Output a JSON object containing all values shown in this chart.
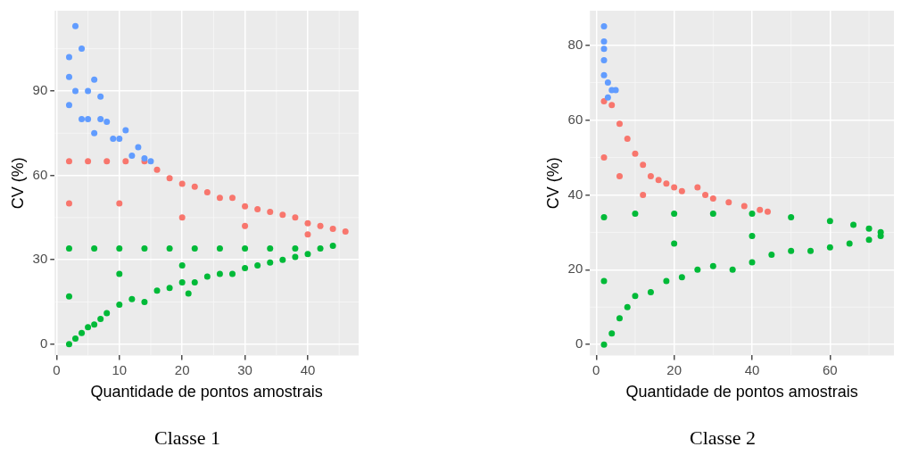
{
  "chart_data": [
    {
      "type": "scatter",
      "title": "Classe 1",
      "xlabel": "Quantidade de pontos amostrais",
      "ylabel": "CV (%)",
      "xlim": [
        -0.3,
        48.1
      ],
      "xticks": [
        0,
        10,
        20,
        30,
        40
      ],
      "ylim": [
        -4,
        118.5
      ],
      "yticks": [
        0,
        30,
        60,
        90
      ],
      "grid": true,
      "marker": "circle",
      "series": [
        {
          "color": "#619cff",
          "x": [
            2,
            3,
            4,
            5,
            6,
            7,
            8,
            9,
            10,
            11,
            12,
            13,
            14,
            15,
            2,
            2,
            3,
            4,
            5,
            6,
            7
          ],
          "values": [
            102,
            113,
            105,
            90,
            94,
            88,
            79,
            73,
            73,
            76,
            67,
            70,
            66,
            65,
            85,
            95,
            90,
            80,
            80,
            75,
            80
          ]
        },
        {
          "color": "#f8766d",
          "x": [
            2,
            5,
            8,
            11,
            14,
            16,
            18,
            20,
            22,
            24,
            26,
            28,
            30,
            32,
            34,
            36,
            38,
            40,
            42,
            44,
            46,
            2,
            10,
            20,
            30,
            40
          ],
          "values": [
            65,
            65,
            65,
            65,
            65,
            62,
            59,
            57,
            56,
            54,
            52,
            52,
            49,
            48,
            47,
            46,
            45,
            43,
            42,
            41,
            40,
            50,
            50,
            45,
            42,
            39
          ]
        },
        {
          "color": "#00ba38",
          "x": [
            2,
            6,
            10,
            14,
            18,
            22,
            26,
            30,
            34,
            38,
            42,
            2,
            3,
            4,
            5,
            6,
            7,
            8,
            10,
            12,
            14,
            16,
            18,
            20,
            21,
            22,
            24,
            26,
            28,
            30,
            32,
            34,
            36,
            38,
            40,
            44,
            2,
            10,
            20
          ],
          "values": [
            34,
            34,
            34,
            34,
            34,
            34,
            34,
            34,
            34,
            34,
            34,
            0,
            2,
            4,
            6,
            7,
            9,
            11,
            14,
            16,
            15,
            19,
            20,
            22,
            18,
            22,
            24,
            25,
            25,
            27,
            28,
            29,
            30,
            31,
            32,
            35,
            17,
            25,
            28
          ]
        }
      ]
    },
    {
      "type": "scatter",
      "title": "Classe 2",
      "xlabel": "Quantidade de pontos amostrais",
      "ylabel": "CV (%)",
      "xlim": [
        -1.6,
        76.4
      ],
      "xticks": [
        0,
        20,
        40,
        60
      ],
      "ylim": [
        -2.9,
        89.2
      ],
      "yticks": [
        0,
        20,
        40,
        60,
        80
      ],
      "grid": true,
      "marker": "circle",
      "series": [
        {
          "color": "#619cff",
          "x": [
            2,
            2,
            2,
            2,
            2,
            3,
            4,
            5,
            3
          ],
          "values": [
            85,
            81,
            79,
            76,
            72,
            70,
            68,
            68,
            66
          ]
        },
        {
          "color": "#f8766d",
          "x": [
            2,
            4,
            6,
            8,
            10,
            12,
            14,
            16,
            18,
            20,
            22,
            26,
            28,
            30,
            34,
            38,
            42,
            44,
            2,
            6,
            12
          ],
          "values": [
            65,
            64,
            59,
            55,
            51,
            48,
            45,
            44,
            43,
            42,
            41,
            42,
            40,
            39,
            38,
            37,
            36,
            35.5,
            50,
            45,
            40
          ]
        },
        {
          "color": "#00ba38",
          "x": [
            2,
            10,
            20,
            30,
            40,
            50,
            60,
            66,
            70,
            73,
            2,
            4,
            6,
            8,
            10,
            14,
            18,
            22,
            26,
            30,
            35,
            40,
            45,
            50,
            55,
            60,
            65,
            70,
            73,
            2,
            20,
            40
          ],
          "values": [
            34,
            35,
            35,
            35,
            35,
            34,
            33,
            32,
            31,
            30,
            0,
            3,
            7,
            10,
            13,
            14,
            17,
            18,
            20,
            21,
            20,
            22,
            24,
            25,
            25,
            26,
            27,
            28,
            29,
            17,
            27,
            29
          ]
        }
      ]
    }
  ]
}
